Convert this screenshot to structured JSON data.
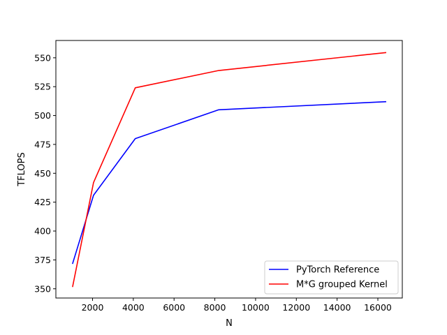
{
  "chart_data": {
    "type": "line",
    "title": "",
    "xlabel": "N",
    "ylabel": "TFLOPS",
    "xlim": [
      200,
      17200
    ],
    "ylim": [
      342,
      565
    ],
    "xticks": [
      2000,
      4000,
      6000,
      8000,
      10000,
      12000,
      14000,
      16000
    ],
    "yticks": [
      350,
      375,
      400,
      425,
      450,
      475,
      500,
      525,
      550
    ],
    "grid": false,
    "legend": "lower-right",
    "series": [
      {
        "name": "PyTorch Reference",
        "color": "#0000ff",
        "x": [
          1024,
          2048,
          4096,
          8192,
          16384
        ],
        "y": [
          372,
          431,
          480,
          505,
          512
        ]
      },
      {
        "name": "M*G grouped Kernel",
        "color": "#ff0000",
        "x": [
          1024,
          2048,
          4096,
          8192,
          16384
        ],
        "y": [
          352,
          442,
          524,
          539,
          554.5
        ]
      }
    ]
  }
}
